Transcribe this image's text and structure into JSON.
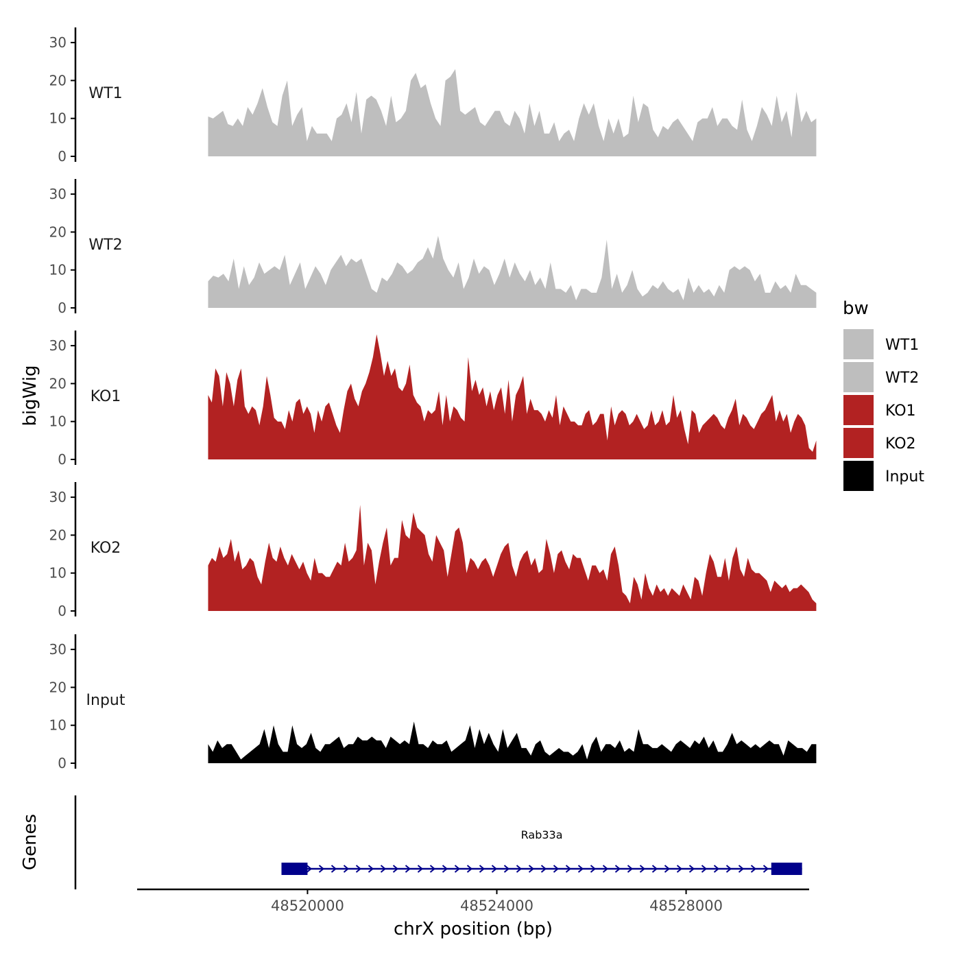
{
  "chart_data": {
    "type": "area",
    "title": "",
    "xlabel": "chrX position (bp)",
    "ylabel": "bigWig",
    "gene_panel_label": "Genes",
    "xlim": [
      48516400,
      48530600
    ],
    "x_ticks": [
      48520000,
      48524000,
      48528000
    ],
    "x_tick_labels": [
      "48520000",
      "48524000",
      "48528000"
    ],
    "ylim": [
      0,
      35
    ],
    "y_ticks": [
      0,
      10,
      20,
      30
    ],
    "y_tick_labels": [
      "0",
      "10",
      "20",
      "30"
    ],
    "legend": {
      "title": "bw",
      "position": "right",
      "entries": [
        {
          "label": "WT1",
          "color": "#bebebe"
        },
        {
          "label": "WT2",
          "color": "#bebebe"
        },
        {
          "label": "KO1",
          "color": "#b22222"
        },
        {
          "label": "KO2",
          "color": "#b22222"
        },
        {
          "label": "Input",
          "color": "#000000"
        }
      ]
    },
    "x_range": [
      48517900,
      48530750
    ],
    "series": [
      {
        "name": "WT1",
        "label": "WT1",
        "color": "#bebebe",
        "values": [
          10.5,
          10,
          11,
          12,
          8.5,
          8,
          10,
          8,
          13,
          11,
          14,
          18,
          13,
          9,
          8,
          16,
          20,
          8,
          11,
          13,
          4,
          8,
          6,
          6,
          6,
          4,
          10,
          11,
          14,
          9,
          17,
          6,
          15,
          16,
          15,
          12,
          8,
          16,
          9,
          10,
          12,
          20,
          22,
          18,
          19,
          14,
          10,
          8,
          20,
          21,
          23,
          12,
          11,
          12,
          13,
          9,
          8,
          10,
          12,
          12,
          9,
          8,
          12,
          10,
          6,
          14,
          8,
          12,
          6,
          6,
          9,
          4,
          6,
          7,
          4,
          10,
          14,
          11,
          14,
          8,
          4,
          10,
          6,
          10,
          5,
          6,
          16,
          9,
          14,
          13,
          7,
          5,
          8,
          7,
          9,
          10,
          8,
          6,
          4,
          9,
          10,
          10,
          13,
          8,
          10,
          10,
          8,
          7,
          15,
          7,
          4,
          8,
          13,
          11,
          8,
          16,
          9,
          12,
          5,
          17,
          9,
          12,
          9,
          10
        ]
      },
      {
        "name": "WT2",
        "label": "WT2",
        "color": "#bebebe",
        "values": [
          7,
          8.5,
          8,
          9,
          7,
          13,
          5,
          11,
          6,
          8,
          12,
          9,
          10,
          11,
          10,
          14,
          6,
          9,
          12,
          5,
          8,
          11,
          9,
          6,
          10,
          12,
          14,
          11,
          13,
          12,
          13,
          9,
          5,
          4,
          8,
          7,
          9,
          12,
          11,
          9,
          10,
          12,
          13,
          16,
          13,
          19,
          13,
          10,
          8,
          12,
          5,
          8,
          13,
          9,
          11,
          10,
          6,
          9,
          13,
          8,
          12,
          9,
          7,
          10,
          6,
          8,
          5,
          12,
          5,
          5,
          4,
          6,
          2,
          5,
          5,
          4,
          4,
          8,
          18,
          5,
          9,
          4,
          6,
          10,
          5,
          3,
          4,
          6,
          5,
          7,
          5,
          4,
          5,
          2,
          8,
          4,
          6,
          4,
          5,
          3,
          6,
          4,
          10,
          11,
          10,
          11,
          10,
          7,
          9,
          4,
          4,
          7,
          5,
          6,
          4,
          9,
          6,
          6,
          5,
          4
        ]
      },
      {
        "name": "KO1",
        "label": "KO1",
        "color": "#b22222",
        "values": [
          17,
          15,
          24,
          22,
          14,
          23,
          20,
          14,
          21,
          24,
          14,
          12,
          14,
          13,
          9,
          14,
          22,
          17,
          11,
          10,
          10,
          8,
          13,
          10,
          15,
          16,
          12,
          14,
          12,
          7,
          13,
          10,
          14,
          15,
          12,
          9,
          7,
          13,
          18,
          20,
          16,
          14,
          18,
          20,
          23,
          27,
          33,
          28,
          22,
          26,
          22,
          24,
          19,
          18,
          20,
          25,
          17,
          15,
          14,
          10,
          13,
          12,
          13,
          18,
          9,
          17,
          10,
          14,
          13,
          11,
          10,
          27,
          18,
          21,
          17,
          19,
          14,
          18,
          13,
          17,
          19,
          12,
          21,
          10,
          17,
          19,
          22,
          12,
          16,
          13,
          13,
          12,
          10,
          13,
          11,
          17,
          9,
          14,
          12,
          10,
          10,
          9,
          9,
          12,
          13,
          9,
          10,
          12,
          12,
          5,
          14,
          9,
          12,
          13,
          12,
          9,
          10,
          12,
          10,
          8,
          9,
          13,
          9,
          10,
          13,
          9,
          10,
          17,
          11,
          13,
          8,
          4,
          13,
          12,
          7,
          9,
          10,
          11,
          12,
          11,
          9,
          8,
          11,
          13,
          16,
          9,
          12,
          11,
          9,
          8,
          10,
          12,
          13,
          15,
          17,
          10,
          13,
          10,
          12,
          7,
          10,
          12,
          11,
          9,
          3,
          2,
          5
        ]
      },
      {
        "name": "KO2",
        "label": "KO2",
        "color": "#b22222",
        "values": [
          12,
          14,
          13,
          17,
          14,
          15,
          19,
          13,
          16,
          11,
          12,
          14,
          13,
          9,
          7,
          13,
          18,
          14,
          13,
          17,
          14,
          12,
          15,
          13,
          11,
          13,
          10,
          8,
          14,
          10,
          10,
          9,
          9,
          11,
          13,
          12,
          18,
          13,
          14,
          16,
          28,
          12,
          18,
          16,
          7,
          13,
          18,
          22,
          12,
          14,
          14,
          24,
          20,
          19,
          26,
          22,
          21,
          20,
          15,
          13,
          20,
          18,
          16,
          9,
          15,
          21,
          22,
          18,
          10,
          14,
          13,
          11,
          13,
          14,
          12,
          9,
          12,
          15,
          17,
          18,
          12,
          9,
          13,
          15,
          16,
          12,
          14,
          10,
          11,
          19,
          15,
          10,
          15,
          16,
          13,
          11,
          15,
          14,
          14,
          11,
          8,
          12,
          12,
          10,
          11,
          8,
          15,
          17,
          12,
          5,
          4,
          2,
          9,
          7,
          3,
          10,
          6,
          4,
          7,
          5,
          6,
          4,
          6,
          5,
          4,
          7,
          5,
          3,
          9,
          8,
          4,
          10,
          15,
          13,
          9,
          9,
          14,
          8,
          14,
          17,
          11,
          9,
          14,
          11,
          10,
          10,
          9,
          8,
          5,
          8,
          7,
          6,
          7,
          5,
          6,
          6,
          7,
          6,
          5,
          3,
          2
        ]
      },
      {
        "name": "Input",
        "label": "Input",
        "color": "#000000",
        "values": [
          5,
          3,
          6,
          4,
          5,
          5,
          3,
          1,
          2,
          3,
          4,
          5,
          9,
          4,
          10,
          5,
          3,
          3,
          10,
          5,
          4,
          5,
          8,
          4,
          3,
          5,
          5,
          6,
          7,
          4,
          5,
          5,
          7,
          6,
          6,
          7,
          6,
          6,
          4,
          7,
          6,
          5,
          6,
          5,
          11,
          5,
          5,
          4,
          6,
          5,
          5,
          6,
          3,
          4,
          5,
          6,
          10,
          4,
          9,
          5,
          8,
          5,
          3,
          9,
          4,
          6,
          8,
          4,
          4,
          2,
          5,
          6,
          3,
          2,
          3,
          4,
          3,
          3,
          2,
          3,
          5,
          1,
          5,
          7,
          3,
          5,
          5,
          4,
          6,
          3,
          4,
          3,
          9,
          5,
          5,
          4,
          4,
          5,
          4,
          3,
          5,
          6,
          5,
          4,
          6,
          5,
          7,
          4,
          6,
          3,
          3,
          5,
          8,
          5,
          6,
          5,
          4,
          5,
          4,
          5,
          6,
          5,
          5,
          2,
          6,
          5,
          4,
          4,
          3,
          5,
          5
        ]
      }
    ],
    "genes": [
      {
        "name": "Rab33a",
        "strand": "+",
        "start": 48519450,
        "end": 48530450,
        "exons": [
          [
            48519450,
            48520000
          ],
          [
            48529800,
            48530450
          ]
        ]
      }
    ]
  }
}
